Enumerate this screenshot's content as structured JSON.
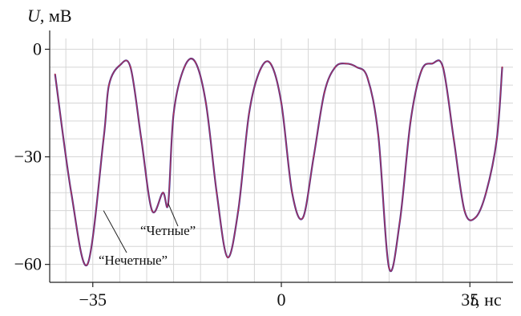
{
  "chart_data": {
    "type": "line",
    "ylabel": {
      "symbol": "U",
      "unit": ", мВ"
    },
    "xlabel": {
      "symbol": "t",
      "unit": ", нс"
    },
    "xlim": [
      -43,
      43
    ],
    "ylim": [
      -65,
      3
    ],
    "x_ticks": [
      -35,
      0,
      35
    ],
    "y_ticks": [
      0,
      -30,
      -60
    ],
    "x_tick_labels": [
      "−35",
      "0",
      "35"
    ],
    "y_tick_labels": [
      "0",
      "−30",
      "−60"
    ],
    "grid": true,
    "series": [
      {
        "name": "Четные",
        "color": "#2b2f9e",
        "x": [
          -42,
          -39,
          -36,
          -33,
          -32,
          -30,
          -28,
          -26,
          -24,
          -22,
          -20,
          -18,
          -16,
          -14,
          -12,
          -10,
          -8,
          -6,
          -4,
          -2,
          0,
          2,
          4,
          -21,
          6,
          8,
          10,
          12,
          14,
          16,
          18,
          20,
          22,
          24,
          26,
          28,
          30,
          32,
          34,
          36,
          38,
          40,
          41
        ],
        "y": [
          -7,
          -40,
          -60,
          -25,
          -10,
          -4.5,
          -5,
          -25,
          -45,
          -40,
          -18,
          -5,
          -3.5,
          -15,
          -40,
          -58,
          -45,
          -18,
          -6,
          -4,
          -15,
          -40,
          -47,
          -43,
          -30,
          -12,
          -5,
          -4,
          -5,
          -8,
          -24,
          -61,
          -48,
          -20,
          -6,
          -4,
          -5,
          -25,
          -45,
          -47,
          -40,
          -25,
          -5
        ]
      },
      {
        "name": "Нечетные",
        "color": "#c0304a",
        "x": [
          -42,
          -39,
          -36,
          -33,
          -32,
          -30,
          -28,
          -26,
          -24,
          -22,
          -20,
          -18,
          -16,
          -14,
          -12,
          -10,
          -8,
          -6,
          -4,
          -2,
          0,
          2,
          4,
          -21,
          6,
          8,
          10,
          12,
          14,
          16,
          18,
          20,
          22,
          24,
          26,
          28,
          30,
          32,
          34,
          36,
          38,
          40,
          41
        ],
        "y": [
          -7,
          -40,
          -60,
          -25,
          -10,
          -4.5,
          -5,
          -25,
          -45,
          -40,
          -18,
          -5,
          -3.5,
          -15,
          -40,
          -58,
          -45,
          -18,
          -6,
          -4,
          -15,
          -40,
          -47,
          -43,
          -30,
          -12,
          -5,
          -4,
          -5,
          -8,
          -24,
          -61,
          -48,
          -20,
          -6,
          -4,
          -5,
          -25,
          -45,
          -47,
          -40,
          -25,
          -5
        ]
      }
    ],
    "annotations": [
      {
        "text": "“Четные”",
        "target": [
          -21,
          -43
        ]
      },
      {
        "text": "“Нечетные”",
        "target": [
          -33,
          -45
        ]
      }
    ]
  }
}
